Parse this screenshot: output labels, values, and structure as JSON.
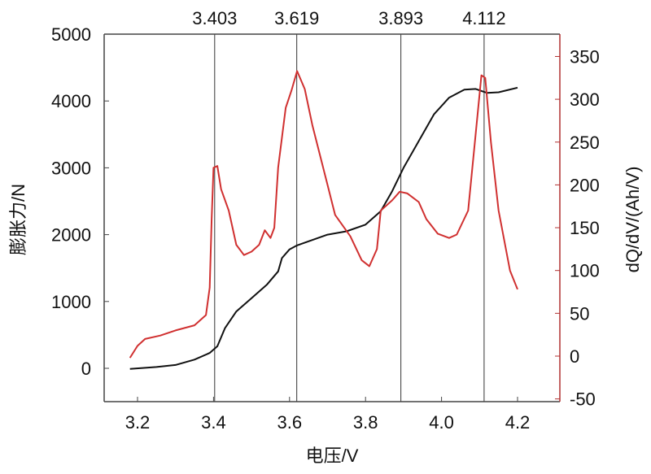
{
  "chart_data": {
    "type": "line",
    "xlabel": "电压/V",
    "ylabel_left": "膨胀力/N",
    "ylabel_right": "dQ/dV/(Ah/V)",
    "xlim": [
      3.11,
      4.31
    ],
    "ylim_left": [
      -500,
      5000
    ],
    "ylim_right": [
      -50,
      370
    ],
    "x_ticks": [
      "3.2",
      "3.4",
      "3.6",
      "3.8",
      "4.0",
      "4.2"
    ],
    "y_left_ticks": [
      "0",
      "1000",
      "2000",
      "3000",
      "4000",
      "5000"
    ],
    "y_right_ticks": [
      "-50",
      "0",
      "50",
      "100",
      "150",
      "200",
      "250",
      "300",
      "350"
    ],
    "grid": false,
    "reference_lines": [
      "3.403",
      "3.619",
      "3.893",
      "4.112"
    ],
    "colors": {
      "force": "#111111",
      "dqdv": "#d03030",
      "right_axis": "#b03030"
    },
    "series": [
      {
        "axis": "left",
        "x": [
          3.18,
          3.25,
          3.3,
          3.35,
          3.39,
          3.41,
          3.43,
          3.46,
          3.5,
          3.54,
          3.57,
          3.58,
          3.6,
          3.62,
          3.66,
          3.7,
          3.75,
          3.8,
          3.84,
          3.87,
          3.9,
          3.94,
          3.98,
          4.02,
          4.06,
          4.09,
          4.12,
          4.15,
          4.2
        ],
        "y": [
          -10,
          20,
          50,
          130,
          230,
          330,
          600,
          850,
          1050,
          1250,
          1450,
          1650,
          1780,
          1840,
          1920,
          2000,
          2050,
          2150,
          2350,
          2650,
          3000,
          3400,
          3800,
          4050,
          4170,
          4180,
          4120,
          4130,
          4200
        ]
      },
      {
        "axis": "right",
        "x": [
          3.18,
          3.2,
          3.22,
          3.26,
          3.3,
          3.35,
          3.38,
          3.39,
          3.395,
          3.4,
          3.41,
          3.42,
          3.44,
          3.46,
          3.48,
          3.5,
          3.52,
          3.535,
          3.55,
          3.56,
          3.57,
          3.59,
          3.605,
          3.62,
          3.64,
          3.66,
          3.7,
          3.72,
          3.76,
          3.79,
          3.81,
          3.83,
          3.84,
          3.87,
          3.89,
          3.91,
          3.94,
          3.96,
          3.99,
          4.02,
          4.04,
          4.07,
          4.09,
          4.105,
          4.115,
          4.13,
          4.15,
          4.18,
          4.2
        ],
        "y": [
          -2,
          12,
          20,
          24,
          30,
          36,
          48,
          80,
          160,
          220,
          222,
          195,
          170,
          130,
          118,
          122,
          130,
          147,
          138,
          150,
          220,
          290,
          310,
          333,
          312,
          270,
          200,
          165,
          140,
          112,
          105,
          125,
          170,
          182,
          192,
          190,
          180,
          160,
          143,
          138,
          142,
          170,
          260,
          328,
          325,
          250,
          170,
          100,
          78
        ]
      }
    ]
  }
}
